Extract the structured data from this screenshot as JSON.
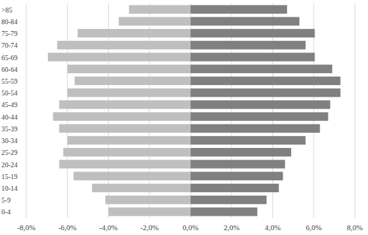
{
  "chart_data": {
    "type": "bar",
    "orientation": "horizontal",
    "stacked": true,
    "grid": true,
    "categories": [
      "0-4",
      "5-9",
      "10-14",
      "15-19",
      "20-24",
      "25-29",
      "30-34",
      "35-39",
      "40-44",
      "45-49",
      "50-54",
      "55-59",
      "60-64",
      "65-69",
      "70-74",
      "75-79",
      "80-84",
      ">85"
    ],
    "series": [
      {
        "color": "#bfbfbf",
        "values": [
          -4.0,
          -4.15,
          -4.8,
          -5.7,
          -6.4,
          -6.2,
          -6.0,
          -6.4,
          -6.7,
          -6.4,
          -6.0,
          -5.65,
          -6.0,
          -6.95,
          -6.5,
          -5.5,
          -3.5,
          -3.0
        ]
      },
      {
        "color": "#808080",
        "values": [
          3.25,
          3.7,
          4.3,
          4.5,
          4.6,
          4.9,
          5.6,
          6.3,
          6.7,
          6.8,
          7.3,
          7.3,
          6.9,
          6.05,
          5.6,
          6.05,
          5.3,
          4.7
        ]
      }
    ],
    "xlim": [
      -8,
      8
    ],
    "xticks": [
      {
        "value": -8,
        "label": "-8,0%"
      },
      {
        "value": -6,
        "label": "-6,0%"
      },
      {
        "value": -4,
        "label": "-4,0%"
      },
      {
        "value": -2,
        "label": "-2,0%"
      },
      {
        "value": 0,
        "label": "0,0%"
      },
      {
        "value": 2,
        "label": "2,0%"
      },
      {
        "value": 4,
        "label": "4,0%"
      },
      {
        "value": 6,
        "label": "6,0%"
      },
      {
        "value": 8,
        "label": "8,0%"
      }
    ]
  }
}
